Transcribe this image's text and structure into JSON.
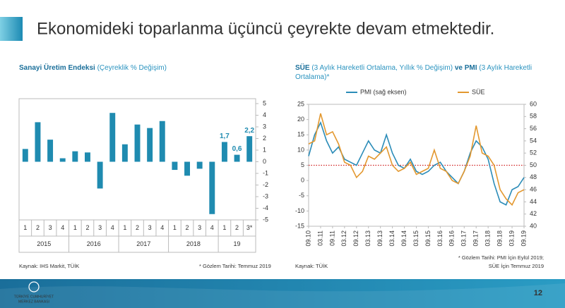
{
  "slide": {
    "title": "Ekonomideki toparlanma üçüncü çeyrekte devam etmektedir.",
    "page_number": "12",
    "logo_lines": [
      "TÜRKİYE CUMHURİYET",
      "MERKEZ BANKASI"
    ]
  },
  "chart_data": [
    {
      "type": "bar",
      "title": [
        {
          "text": "Sanayi Üretim Endeksi",
          "bold": true
        },
        {
          "text": " (Çeyreklik % Değişim)",
          "bold": false
        }
      ],
      "groups": [
        {
          "name": "2015",
          "categories": [
            "1",
            "2",
            "3",
            "4"
          ]
        },
        {
          "name": "2016",
          "categories": [
            "1",
            "2",
            "3",
            "4"
          ]
        },
        {
          "name": "2017",
          "categories": [
            "1",
            "2",
            "3",
            "4"
          ]
        },
        {
          "name": "2018",
          "categories": [
            "1",
            "2",
            "3",
            "4"
          ]
        },
        {
          "name": "19",
          "categories": [
            "1",
            "2",
            "3*"
          ]
        }
      ],
      "values": [
        1.1,
        3.4,
        1.9,
        0.3,
        0.9,
        0.8,
        -2.3,
        4.2,
        1.5,
        3.2,
        2.9,
        3.5,
        -0.7,
        -1.2,
        -0.6,
        -4.5,
        1.7,
        0.6,
        2.2
      ],
      "value_labels": [
        null,
        null,
        null,
        null,
        null,
        null,
        null,
        null,
        null,
        null,
        null,
        null,
        null,
        null,
        null,
        null,
        "1,7",
        "0,6",
        "2,2"
      ],
      "color": "#1f8bb0",
      "ylim": [
        -5,
        5
      ],
      "yticks": [
        -5,
        -4,
        -3,
        -2,
        -1,
        0,
        1,
        2,
        3,
        4,
        5
      ],
      "source": "Kaynak: IHS Markit, TÜİK",
      "note": [
        "* Gözlem Tarihi: Temmuz 2019"
      ]
    },
    {
      "type": "line",
      "title": [
        {
          "text": "SÜE",
          "bold": true
        },
        {
          "text": " (3 Aylık Hareketli Ortalama, Yıllık % Değişim) ",
          "bold": false
        },
        {
          "text": "ve PMI",
          "bold": true
        },
        {
          "text": " (3 Aylık Hareketli Ortalama)*",
          "bold": false
        }
      ],
      "x": [
        "09.10",
        "12.10",
        "03.11",
        "06.11",
        "09.11",
        "12.11",
        "03.12",
        "06.12",
        "09.12",
        "12.12",
        "03.13",
        "06.13",
        "09.13",
        "12.13",
        "03.14",
        "06.14",
        "09.14",
        "12.14",
        "03.15",
        "06.15",
        "09.15",
        "12.15",
        "03.16",
        "06.16",
        "09.16",
        "12.16",
        "03.17",
        "06.17",
        "09.17",
        "12.17",
        "03.18",
        "06.18",
        "09.18",
        "12.18",
        "03.19",
        "06.19",
        "09.19"
      ],
      "xticks": [
        "09.10",
        "03.11",
        "09.11",
        "03.12",
        "09.12",
        "03.13",
        "09.13",
        "03.14",
        "09.14",
        "03.15",
        "09.15",
        "03.16",
        "09.16",
        "03.17",
        "09.17",
        "03.18",
        "09.18",
        "03.19",
        "09.19"
      ],
      "series": [
        {
          "name": "PMI (sağ eksen)",
          "color": "#2b8cb8",
          "axis": "y2",
          "values": [
            51.5,
            55,
            57,
            54,
            52,
            53,
            51,
            50.5,
            50,
            52,
            54,
            52.5,
            52,
            55,
            52,
            50,
            49.5,
            51,
            49,
            48.5,
            49,
            50,
            50.5,
            49,
            48,
            47,
            49,
            52,
            54,
            53,
            51,
            47,
            44,
            43.5,
            46,
            46.5,
            48
          ]
        },
        {
          "name": "SÜE",
          "color": "#e3982f",
          "values": [
            12,
            13,
            22,
            15,
            16,
            12,
            6,
            5,
            1,
            3,
            8,
            7,
            9,
            11,
            5,
            3,
            4,
            6,
            2,
            3,
            4,
            10,
            4,
            3,
            0,
            -1,
            3,
            8,
            18,
            9,
            8,
            5,
            -3,
            -6,
            -8,
            -4,
            -3
          ]
        }
      ],
      "ylim": [
        -15,
        25
      ],
      "yticks": [
        -15,
        -10,
        -5,
        0,
        5,
        10,
        15,
        20,
        25
      ],
      "y2lim": [
        40,
        60
      ],
      "y2ticks": [
        40,
        42,
        44,
        46,
        48,
        50,
        52,
        54,
        56,
        58,
        60
      ],
      "reference_line": {
        "value": 5,
        "color": "#d02020"
      },
      "source": "Kaynak: TÜİK",
      "note": [
        "* Gözlem Tarihi: PMI İçin Eylül 2019;",
        "SÜE İçin Temmuz 2019"
      ]
    }
  ]
}
